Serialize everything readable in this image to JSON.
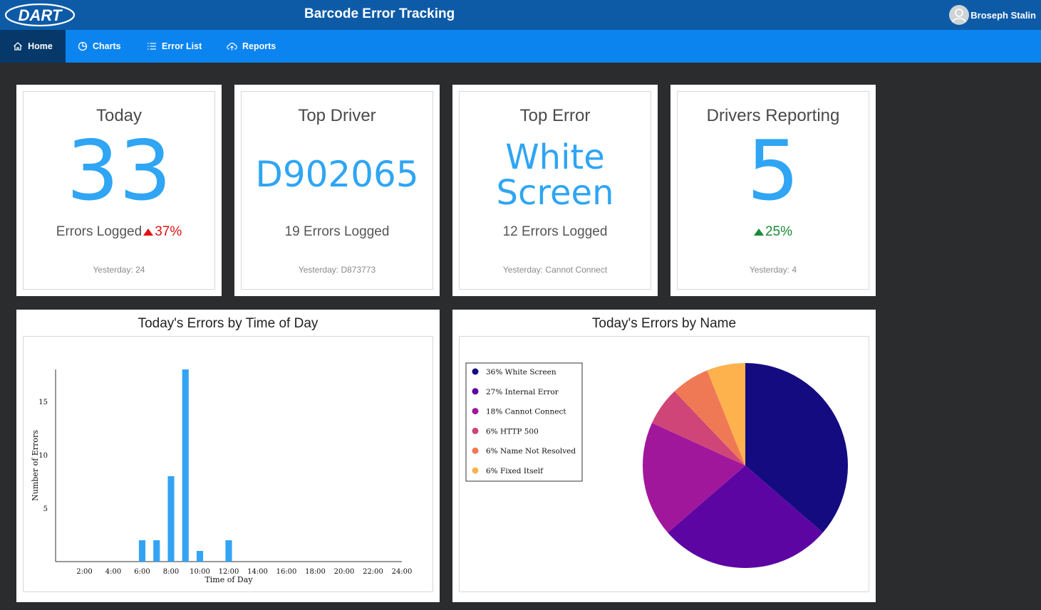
{
  "header": {
    "logo_text": "DART",
    "title": "Barcode Error Tracking",
    "user_name": "Broseph Stalin"
  },
  "nav": {
    "items": [
      {
        "label": "Home",
        "icon": "home-icon",
        "active": true
      },
      {
        "label": "Charts",
        "icon": "pie-chart-icon",
        "active": false
      },
      {
        "label": "Error List",
        "icon": "list-icon",
        "active": false
      },
      {
        "label": "Reports",
        "icon": "cloud-upload-icon",
        "active": false
      }
    ]
  },
  "cards": {
    "today": {
      "title": "Today",
      "value": "33",
      "sub_label": "Errors Logged",
      "change": "37%",
      "change_dir": "up",
      "footer": "Yesterday: 24"
    },
    "top_driver": {
      "title": "Top Driver",
      "value": "D902065",
      "sub_label": "19 Errors Logged",
      "footer": "Yesterday: D873773"
    },
    "top_error": {
      "title": "Top Error",
      "value_line1": "White",
      "value_line2": "Screen",
      "sub_label": "12 Errors Logged",
      "footer": "Yesterday: Cannot Connect"
    },
    "drivers_reporting": {
      "title": "Drivers Reporting",
      "value": "5",
      "change": "25%",
      "change_dir": "up",
      "footer": "Yesterday: 4"
    }
  },
  "colors": {
    "accent_blue": "#2fa5f4",
    "header_blue": "#0d5ba7",
    "nav_blue": "#0b84f0",
    "nav_active": "#06386a",
    "up_red": "#e01212",
    "up_green": "#1a8a34"
  },
  "chart_data": [
    {
      "type": "bar",
      "title": "Today's Errors by Time of Day",
      "xlabel": "Time of Day",
      "ylabel": "Number of Errors",
      "x_ticks": [
        "2:00",
        "4:00",
        "6:00",
        "8:00",
        "10:00",
        "12:00",
        "14:00",
        "16:00",
        "18:00",
        "20:00",
        "22:00",
        "24:00"
      ],
      "x_tick_values": [
        2,
        4,
        6,
        8,
        10,
        12,
        14,
        16,
        18,
        20,
        22,
        24
      ],
      "y_ticks": [
        5,
        10,
        15
      ],
      "xlim": [
        0,
        24
      ],
      "ylim": [
        0,
        18
      ],
      "x": [
        6,
        7,
        8,
        9,
        10,
        12
      ],
      "values": [
        2,
        2,
        8,
        18,
        1,
        2
      ],
      "color": "#33a3f4",
      "grid": false
    },
    {
      "type": "pie",
      "title": "Today's Errors by Name",
      "legend_position": "left",
      "slices": [
        {
          "label": "36% White Screen",
          "value": 36,
          "color": "#140b80"
        },
        {
          "label": "27% Internal Error",
          "value": 27,
          "color": "#5c05a3"
        },
        {
          "label": "18% Cannot Connect",
          "value": 18,
          "color": "#a1179c"
        },
        {
          "label": "6% HTTP 500",
          "value": 6,
          "color": "#cf4577"
        },
        {
          "label": "6% Name Not Resolved",
          "value": 6,
          "color": "#f07955"
        },
        {
          "label": "6% Fixed Itself",
          "value": 6,
          "color": "#fdb24d"
        }
      ]
    }
  ]
}
